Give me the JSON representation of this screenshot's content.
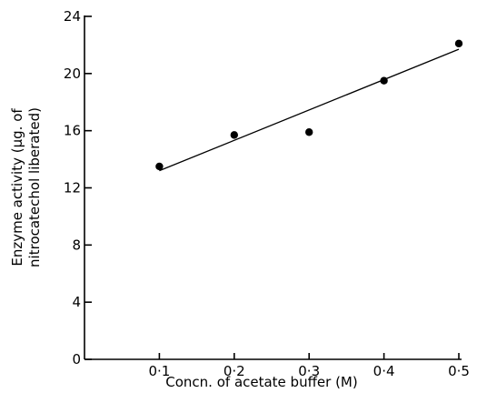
{
  "chart_data": {
    "type": "scatter",
    "xlabel": "Concn. of acetate buffer (M)",
    "ylabel_line1": "Enzyme activity (μg. of",
    "ylabel_line2": "nitrocatechol liberated)",
    "xlim": [
      0,
      0.5
    ],
    "ylim": [
      0,
      24
    ],
    "x_ticks": [
      0.1,
      0.2,
      0.3,
      0.4,
      0.5
    ],
    "x_tick_labels": [
      "0·1",
      "0·2",
      "0·3",
      "0·4",
      "0·5"
    ],
    "y_ticks": [
      0,
      4,
      8,
      12,
      16,
      20,
      24
    ],
    "y_tick_labels": [
      "0",
      "4",
      "8",
      "12",
      "16",
      "20",
      "24"
    ],
    "grid": false,
    "series": [
      {
        "points": [
          {
            "x": 0.1,
            "y": 13.5
          },
          {
            "x": 0.2,
            "y": 15.7
          },
          {
            "x": 0.3,
            "y": 15.9
          },
          {
            "x": 0.4,
            "y": 19.5
          },
          {
            "x": 0.5,
            "y": 22.1
          }
        ]
      }
    ],
    "fit_line": {
      "x": [
        0.1,
        0.5
      ],
      "y": [
        13.2,
        21.7
      ]
    },
    "colors": {
      "ink": "#000000",
      "background": "#ffffff"
    }
  }
}
